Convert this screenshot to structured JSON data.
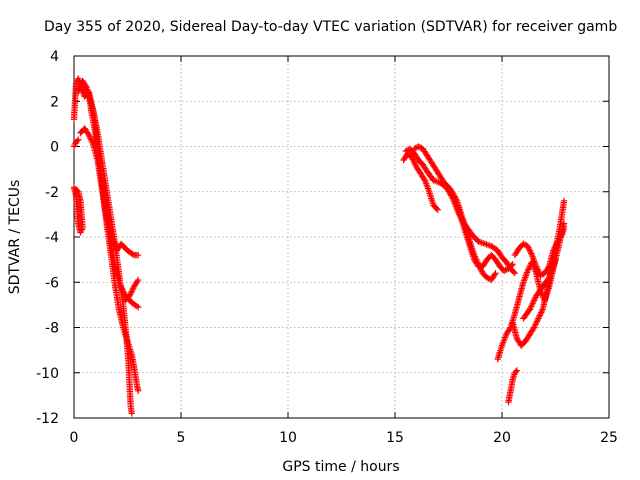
{
  "chart_data": {
    "type": "scatter",
    "title": "Day 355 of 2020, Sidereal Day-to-day VTEC variation (SDTVAR) for receiver gamb",
    "xlabel": "GPS time / hours",
    "ylabel": "SDTVAR / TECUs",
    "xlim": [
      0,
      25
    ],
    "ylim": [
      -12,
      4
    ],
    "grid": true,
    "x_ticks": [
      0,
      5,
      10,
      15,
      20,
      25
    ],
    "y_ticks": [
      -12,
      -10,
      -8,
      -6,
      -4,
      -2,
      0,
      2,
      4
    ],
    "x_tick_labels": [
      "0",
      "5",
      "10",
      "15",
      "20",
      "25"
    ],
    "y_tick_labels": [
      "-12",
      "-10",
      "-8",
      "-6",
      "-4",
      "-2",
      "0",
      "2",
      "4"
    ],
    "marker": "+",
    "color": "#ff0000",
    "tracks": [
      {
        "name": "track-1",
        "points": [
          [
            0.0,
            1.2
          ],
          [
            0.1,
            2.8
          ],
          [
            0.2,
            3.0
          ],
          [
            0.35,
            2.6
          ],
          [
            0.5,
            2.2
          ],
          [
            0.7,
            2.4
          ],
          [
            0.8,
            1.6
          ],
          [
            1.0,
            0.6
          ],
          [
            1.2,
            -0.8
          ],
          [
            1.4,
            -2.2
          ],
          [
            1.6,
            -3.2
          ],
          [
            1.8,
            -4.1
          ],
          [
            2.0,
            -4.6
          ],
          [
            2.2,
            -4.3
          ],
          [
            2.5,
            -4.6
          ],
          [
            2.8,
            -4.8
          ],
          [
            3.0,
            -4.8
          ]
        ]
      },
      {
        "name": "track-2",
        "points": [
          [
            0.2,
            2.4
          ],
          [
            0.4,
            2.9
          ],
          [
            0.6,
            2.6
          ],
          [
            0.8,
            2.0
          ],
          [
            1.0,
            1.0
          ],
          [
            1.1,
            -0.2
          ],
          [
            1.3,
            -1.6
          ],
          [
            1.5,
            -3.0
          ],
          [
            1.7,
            -4.2
          ],
          [
            1.9,
            -5.2
          ],
          [
            2.1,
            -6.0
          ],
          [
            2.4,
            -6.6
          ],
          [
            2.7,
            -6.9
          ],
          [
            3.0,
            -7.1
          ]
        ]
      },
      {
        "name": "track-3",
        "points": [
          [
            0.5,
            2.6
          ],
          [
            0.7,
            2.2
          ],
          [
            0.9,
            1.6
          ],
          [
            1.1,
            0.6
          ],
          [
            1.3,
            -0.6
          ],
          [
            1.5,
            -1.8
          ],
          [
            1.7,
            -3.0
          ],
          [
            1.9,
            -4.2
          ],
          [
            2.1,
            -5.6
          ],
          [
            2.3,
            -7.0
          ],
          [
            2.45,
            -8.4
          ],
          [
            2.55,
            -9.6
          ],
          [
            2.6,
            -10.6
          ],
          [
            2.65,
            -11.5
          ],
          [
            2.7,
            -11.8
          ]
        ]
      },
      {
        "name": "track-4",
        "points": [
          [
            0.3,
            0.6
          ],
          [
            0.5,
            0.8
          ],
          [
            0.7,
            0.5
          ],
          [
            0.9,
            0.1
          ],
          [
            1.1,
            -0.6
          ],
          [
            1.3,
            -1.8
          ],
          [
            1.5,
            -3.2
          ],
          [
            1.7,
            -4.6
          ],
          [
            1.9,
            -6.0
          ],
          [
            2.1,
            -7.2
          ],
          [
            2.3,
            -8.0
          ],
          [
            2.5,
            -8.6
          ],
          [
            2.7,
            -9.2
          ],
          [
            2.85,
            -10.0
          ],
          [
            2.95,
            -10.6
          ],
          [
            3.0,
            -10.8
          ]
        ]
      },
      {
        "name": "track-5",
        "points": [
          [
            0.0,
            0.0
          ],
          [
            0.1,
            0.2
          ],
          [
            0.2,
            0.3
          ]
        ]
      },
      {
        "name": "track-6",
        "points": [
          [
            0.0,
            -1.8
          ],
          [
            0.1,
            -2.2
          ],
          [
            0.15,
            -2.8
          ],
          [
            0.2,
            -3.4
          ],
          [
            0.3,
            -3.8
          ],
          [
            0.4,
            -3.6
          ],
          [
            0.35,
            -3.0
          ],
          [
            0.3,
            -2.4
          ],
          [
            0.2,
            -2.0
          ],
          [
            0.1,
            -1.9
          ]
        ]
      },
      {
        "name": "track-7",
        "points": [
          [
            2.4,
            -6.8
          ],
          [
            2.6,
            -6.6
          ],
          [
            2.8,
            -6.2
          ],
          [
            3.0,
            -5.9
          ]
        ]
      },
      {
        "name": "track-8",
        "points": [
          [
            15.4,
            -0.6
          ],
          [
            15.6,
            -0.3
          ],
          [
            15.8,
            -0.5
          ],
          [
            16.0,
            -0.9
          ],
          [
            16.2,
            -1.2
          ],
          [
            16.4,
            -1.5
          ],
          [
            16.6,
            -2.0
          ],
          [
            16.8,
            -2.6
          ],
          [
            17.0,
            -2.8
          ]
        ]
      },
      {
        "name": "track-9",
        "points": [
          [
            15.5,
            -0.2
          ],
          [
            15.7,
            -0.1
          ],
          [
            15.9,
            -0.3
          ],
          [
            16.1,
            -0.6
          ],
          [
            16.3,
            -0.8
          ],
          [
            16.5,
            -1.1
          ],
          [
            16.8,
            -1.5
          ],
          [
            17.1,
            -1.6
          ],
          [
            17.4,
            -1.8
          ],
          [
            17.7,
            -2.3
          ],
          [
            18.0,
            -3.0
          ],
          [
            18.3,
            -3.5
          ],
          [
            18.6,
            -3.9
          ],
          [
            18.9,
            -4.2
          ],
          [
            19.2,
            -4.3
          ],
          [
            19.5,
            -4.4
          ],
          [
            19.8,
            -4.6
          ],
          [
            20.0,
            -4.9
          ],
          [
            20.2,
            -5.1
          ],
          [
            20.4,
            -5.4
          ],
          [
            20.6,
            -5.6
          ]
        ]
      },
      {
        "name": "track-10",
        "points": [
          [
            15.9,
            -0.1
          ],
          [
            16.1,
            0.0
          ],
          [
            16.3,
            -0.1
          ],
          [
            16.5,
            -0.4
          ],
          [
            16.7,
            -0.7
          ],
          [
            16.9,
            -1.0
          ],
          [
            17.1,
            -1.3
          ],
          [
            17.3,
            -1.6
          ],
          [
            17.6,
            -1.9
          ],
          [
            17.9,
            -2.4
          ],
          [
            18.1,
            -3.0
          ],
          [
            18.3,
            -3.6
          ],
          [
            18.5,
            -4.2
          ],
          [
            18.7,
            -4.8
          ],
          [
            18.9,
            -5.2
          ],
          [
            19.1,
            -5.6
          ],
          [
            19.3,
            -5.8
          ],
          [
            19.5,
            -5.9
          ],
          [
            19.7,
            -5.6
          ]
        ]
      },
      {
        "name": "track-11",
        "points": [
          [
            17.9,
            -2.6
          ],
          [
            18.1,
            -3.2
          ],
          [
            18.3,
            -3.8
          ],
          [
            18.5,
            -4.4
          ],
          [
            18.7,
            -5.0
          ],
          [
            18.9,
            -5.3
          ],
          [
            19.1,
            -5.3
          ],
          [
            19.3,
            -5.0
          ],
          [
            19.5,
            -4.8
          ],
          [
            19.7,
            -5.0
          ],
          [
            19.9,
            -5.3
          ],
          [
            20.1,
            -5.5
          ],
          [
            20.3,
            -5.4
          ],
          [
            20.5,
            -5.2
          ]
        ]
      },
      {
        "name": "track-12",
        "points": [
          [
            19.8,
            -9.4
          ],
          [
            20.0,
            -8.8
          ],
          [
            20.2,
            -8.3
          ],
          [
            20.4,
            -8.0
          ],
          [
            20.6,
            -7.4
          ],
          [
            20.8,
            -6.7
          ],
          [
            21.0,
            -6.0
          ],
          [
            21.2,
            -5.5
          ],
          [
            21.4,
            -5.1
          ],
          [
            21.6,
            -5.6
          ],
          [
            21.8,
            -6.4
          ],
          [
            22.0,
            -6.8
          ],
          [
            22.2,
            -6.2
          ],
          [
            22.4,
            -5.4
          ],
          [
            22.6,
            -4.6
          ],
          [
            22.8,
            -3.8
          ],
          [
            22.9,
            -3.4
          ]
        ]
      },
      {
        "name": "track-13",
        "points": [
          [
            20.5,
            -7.8
          ],
          [
            20.7,
            -8.5
          ],
          [
            20.9,
            -8.8
          ],
          [
            21.1,
            -8.6
          ],
          [
            21.3,
            -8.3
          ],
          [
            21.5,
            -8.0
          ],
          [
            21.7,
            -7.6
          ],
          [
            21.9,
            -7.2
          ],
          [
            22.1,
            -6.4
          ],
          [
            22.3,
            -5.4
          ],
          [
            22.5,
            -4.6
          ],
          [
            22.7,
            -3.6
          ],
          [
            22.8,
            -3.0
          ],
          [
            22.9,
            -2.4
          ]
        ]
      },
      {
        "name": "track-14",
        "points": [
          [
            20.6,
            -4.8
          ],
          [
            20.8,
            -4.5
          ],
          [
            21.0,
            -4.3
          ],
          [
            21.2,
            -4.4
          ],
          [
            21.4,
            -4.8
          ],
          [
            21.6,
            -5.3
          ],
          [
            21.8,
            -5.7
          ],
          [
            22.0,
            -5.6
          ],
          [
            22.2,
            -5.3
          ],
          [
            22.4,
            -4.6
          ],
          [
            22.6,
            -4.2
          ],
          [
            22.8,
            -3.9
          ],
          [
            22.9,
            -3.6
          ]
        ]
      },
      {
        "name": "track-15",
        "points": [
          [
            20.3,
            -11.3
          ],
          [
            20.4,
            -10.8
          ],
          [
            20.5,
            -10.3
          ],
          [
            20.6,
            -10.0
          ],
          [
            20.7,
            -9.9
          ]
        ]
      },
      {
        "name": "track-16",
        "points": [
          [
            21.0,
            -7.6
          ],
          [
            21.3,
            -7.2
          ],
          [
            21.6,
            -6.6
          ],
          [
            21.9,
            -6.2
          ],
          [
            22.2,
            -5.8
          ],
          [
            22.5,
            -5.0
          ]
        ]
      }
    ]
  }
}
